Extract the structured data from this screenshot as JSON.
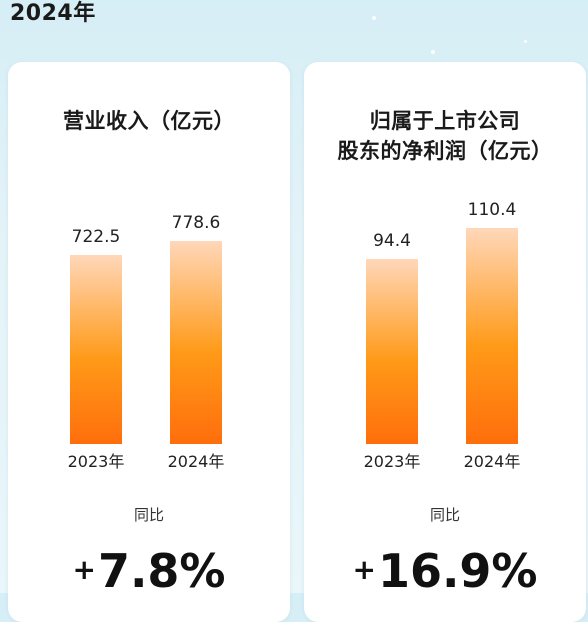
{
  "page": {
    "title": "2024年"
  },
  "chart_data": [
    {
      "type": "bar",
      "title": "营业收入（亿元）",
      "categories": [
        "2023年",
        "2024年"
      ],
      "values": [
        722.5,
        778.6
      ],
      "value_labels": [
        "722.5",
        "778.6"
      ],
      "ylim": [
        0,
        900
      ],
      "yoy": {
        "label": "同比",
        "sign": "+",
        "value": "7.8%"
      }
    },
    {
      "type": "bar",
      "title": "归属于上市公司股东的净利润（亿元）",
      "title_lines": [
        "归属于上市公司",
        "股东的净利润（亿元）"
      ],
      "categories": [
        "2023年",
        "2024年"
      ],
      "values": [
        94.4,
        110.4
      ],
      "value_labels": [
        "94.4",
        "110.4"
      ],
      "ylim": [
        0,
        120
      ],
      "yoy": {
        "label": "同比",
        "sign": "+",
        "value": "16.9%"
      }
    }
  ],
  "colors": {
    "bar_top": "#ffd7b9",
    "bar_mid": "#ff9a18",
    "bar_bottom": "#ff6e0c"
  }
}
